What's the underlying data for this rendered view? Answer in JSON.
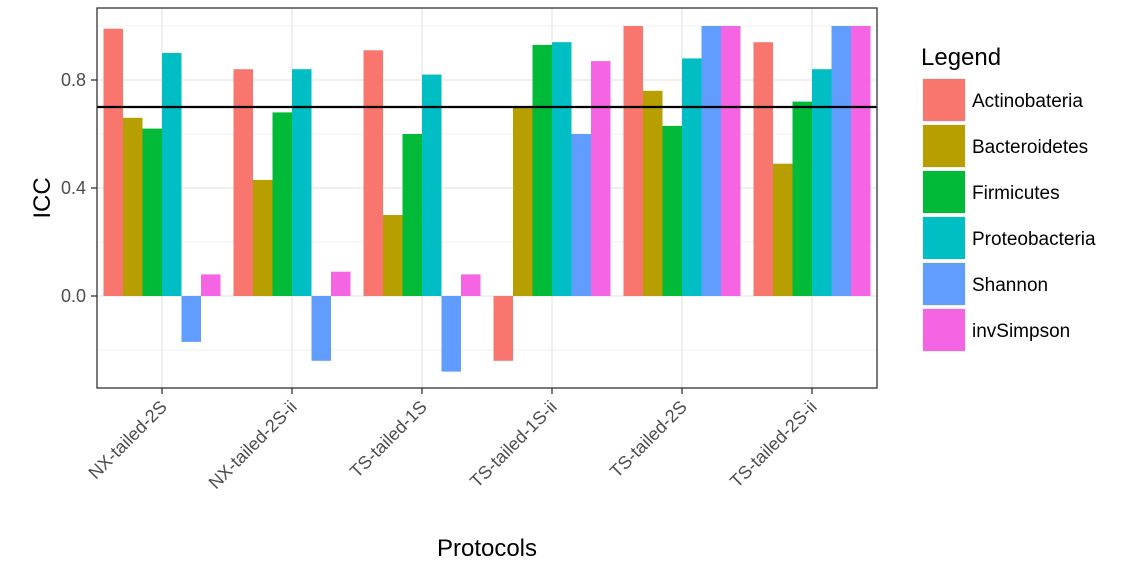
{
  "chart_data": {
    "type": "bar",
    "xlabel": "Protocols",
    "ylabel": "ICC",
    "ylim": [
      -0.33,
      1.02
    ],
    "yticks": [
      0.0,
      0.4,
      0.8
    ],
    "ytick_labels": [
      "0.0",
      "0.4",
      "0.8"
    ],
    "grid": true,
    "legend_title": "Legend",
    "legend_position": "right",
    "reference_line": 0.7,
    "categories": [
      "NX-tailed-2S",
      "NX-tailed-2S-ii",
      "TS-tailed-1S",
      "TS-tailed-1S-ii",
      "TS-tailed-2S",
      "TS-tailed-2S-ii"
    ],
    "series": [
      {
        "name": "Actinobateria",
        "color": "#F8766D",
        "values": [
          0.99,
          0.84,
          0.91,
          -0.24,
          1.0,
          0.94
        ]
      },
      {
        "name": "Bacteroidetes",
        "color": "#B79F00",
        "values": [
          0.66,
          0.43,
          0.3,
          0.7,
          0.76,
          0.49
        ]
      },
      {
        "name": "Firmicutes",
        "color": "#00BA38",
        "values": [
          0.62,
          0.68,
          0.6,
          0.93,
          0.63,
          0.72
        ]
      },
      {
        "name": "Proteobacteria",
        "color": "#00BFC4",
        "values": [
          0.9,
          0.84,
          0.82,
          0.94,
          0.88,
          0.84
        ]
      },
      {
        "name": "Shannon",
        "color": "#619CFF",
        "values": [
          -0.17,
          -0.24,
          -0.28,
          0.6,
          1.0,
          1.0
        ]
      },
      {
        "name": "invSimpson",
        "color": "#F564E3",
        "values": [
          0.08,
          0.09,
          0.08,
          0.87,
          1.0,
          1.0
        ]
      }
    ]
  }
}
